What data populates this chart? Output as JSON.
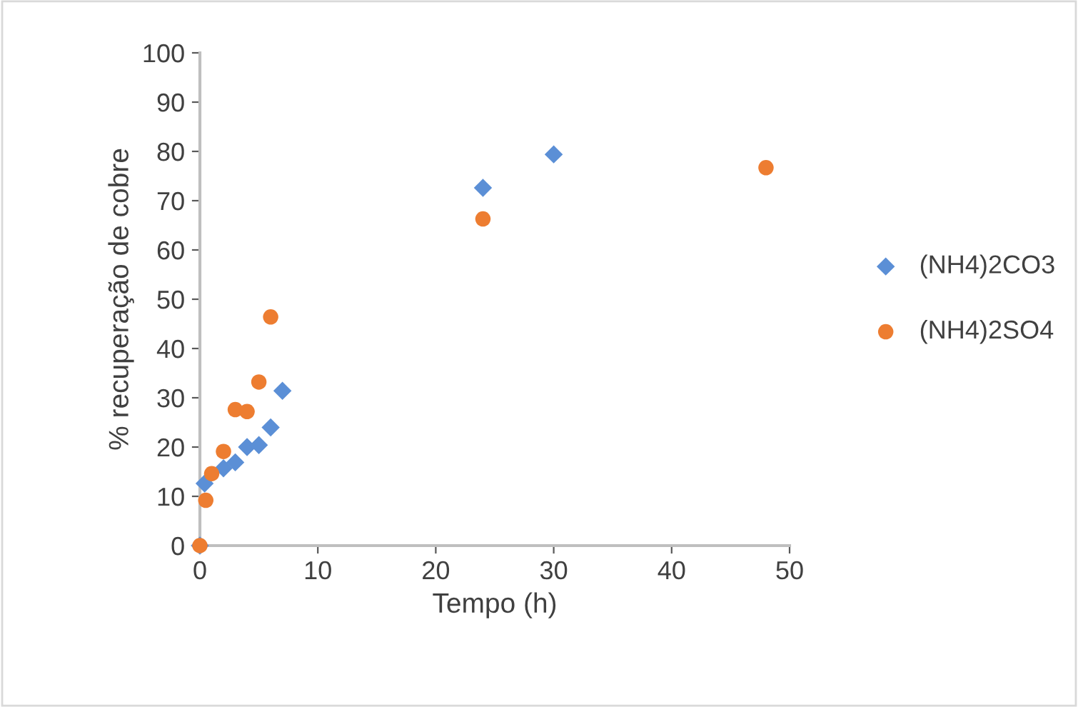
{
  "chart_data": {
    "type": "scatter",
    "xlabel": "Tempo (h)",
    "ylabel": "% recuperação de cobre",
    "xlim": [
      0,
      50
    ],
    "ylim": [
      0,
      100
    ],
    "xticks": [
      0,
      10,
      20,
      30,
      40,
      50
    ],
    "yticks": [
      0,
      10,
      20,
      30,
      40,
      50,
      60,
      70,
      80,
      90,
      100
    ],
    "grid": false,
    "legend": "right",
    "series": [
      {
        "name": "(NH4)2CO3",
        "color": "#5b8fd6",
        "marker": "diamond",
        "x": [
          0,
          0.4,
          2,
          3,
          4,
          5,
          6,
          7,
          24,
          30
        ],
        "values": [
          0,
          12.6,
          15.7,
          16.9,
          20,
          20.4,
          24,
          31.4,
          72.6,
          79.4
        ]
      },
      {
        "name": "(NH4)2SO4",
        "color": "#ed7d31",
        "marker": "circle",
        "x": [
          0,
          0.5,
          1,
          2,
          3,
          4,
          5,
          6,
          24,
          48
        ],
        "values": [
          0,
          9.2,
          14.6,
          19.1,
          27.6,
          27.2,
          33.2,
          46.4,
          66.3,
          76.7
        ]
      }
    ]
  }
}
